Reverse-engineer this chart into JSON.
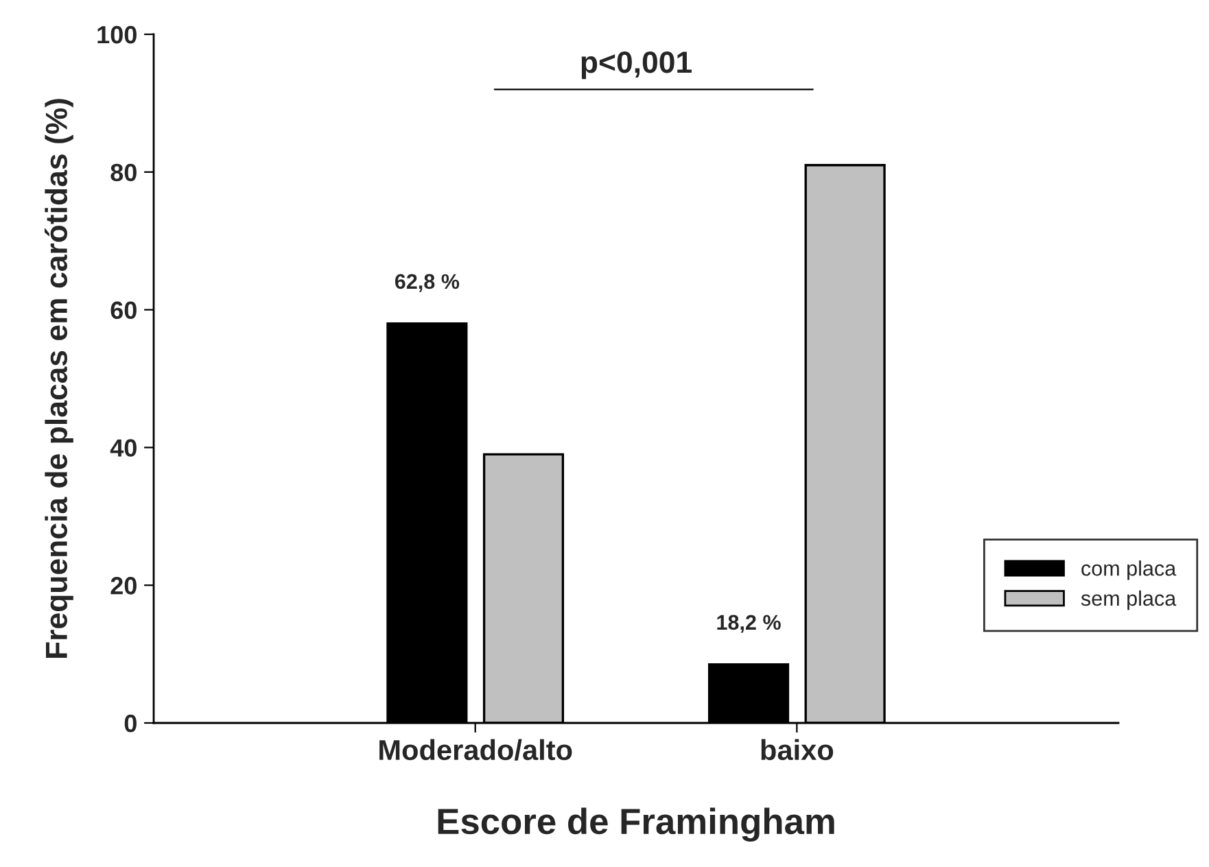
{
  "chart_data": {
    "type": "bar",
    "xlabel": "Escore de Framingham",
    "ylabel": "Frequencia de placas em carótidas (%)",
    "categories": [
      "Moderado/alto",
      "baixo"
    ],
    "series": [
      {
        "name": "com placa",
        "color": "#000000",
        "values": [
          58,
          8.5
        ]
      },
      {
        "name": "sem placa",
        "color": "#c0c0c0",
        "values": [
          39,
          81
        ]
      }
    ],
    "ylim": [
      0,
      100
    ],
    "yticks": [
      0,
      20,
      40,
      60,
      80,
      100
    ],
    "grid": false,
    "legend": "bottom right",
    "annotations": [
      "62,8 %",
      "18,2 %",
      "p<0,001"
    ]
  }
}
